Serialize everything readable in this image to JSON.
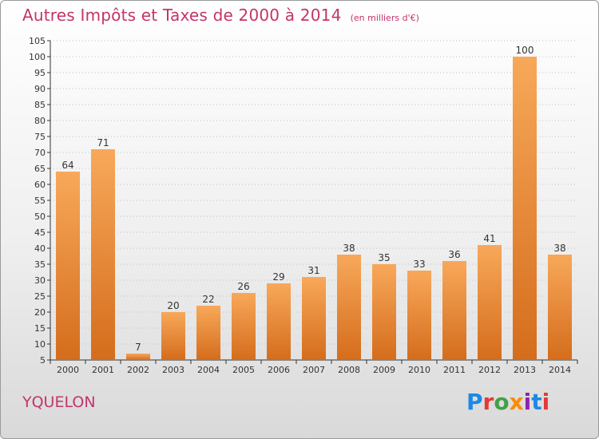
{
  "title": "Autres Impôts et Taxes de 2000 à 2014",
  "subtitle": "(en milliers d'€)",
  "location": "YQUELON",
  "logo": {
    "text": "Proxiti",
    "colors": [
      "#1e88e5",
      "#e53935",
      "#43a047",
      "#fb8c00",
      "#8e24aa",
      "#1e88e5",
      "#e53935"
    ]
  },
  "colors": {
    "bar_light": "#f8a85a",
    "bar_dark": "#d46d1c",
    "accent": "#c4346b",
    "grid": "#c0c0c0",
    "axis": "#333333"
  },
  "chart_data": {
    "type": "bar",
    "title": "Autres Impôts et Taxes de 2000 à 2014",
    "subtitle": "(en milliers d'€)",
    "xlabel": "",
    "ylabel": "",
    "categories": [
      "2000",
      "2001",
      "2002",
      "2003",
      "2004",
      "2005",
      "2006",
      "2007",
      "2008",
      "2009",
      "2010",
      "2011",
      "2012",
      "2013",
      "2014"
    ],
    "values": [
      64,
      71,
      7,
      20,
      22,
      26,
      29,
      31,
      38,
      35,
      33,
      36,
      41,
      100,
      38
    ],
    "ylim": [
      5,
      105
    ],
    "yticks": [
      5,
      10,
      15,
      20,
      25,
      30,
      35,
      40,
      45,
      50,
      55,
      60,
      65,
      70,
      75,
      80,
      85,
      90,
      95,
      100,
      105
    ],
    "grid": true,
    "legend": "none"
  }
}
